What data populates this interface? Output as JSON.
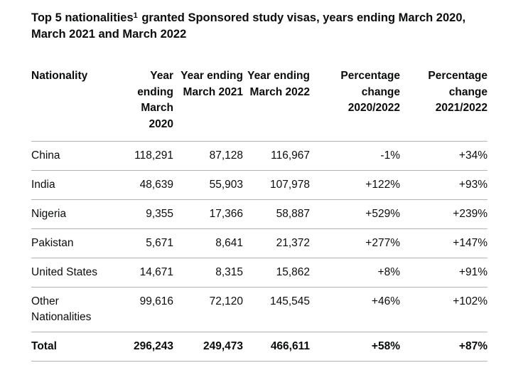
{
  "caption": {
    "before_sup": "Top 5 nationalities",
    "sup": "1",
    "after_sup": " granted Sponsored study visas, years ending March 2020, March 2021 and March 2022"
  },
  "table": {
    "headers": [
      "Nationality",
      "Year ending March 2020",
      "Year ending March 2021",
      "Year ending March 2022",
      "Percentage change 2020/2022",
      "Percentage change 2021/2022"
    ],
    "rows": [
      [
        "China",
        "118,291",
        "87,128",
        "116,967",
        "-1%",
        "+34%"
      ],
      [
        "India",
        "48,639",
        "55,903",
        "107,978",
        "+122%",
        "+93%"
      ],
      [
        "Nigeria",
        "9,355",
        "17,366",
        "58,887",
        "+529%",
        "+239%"
      ],
      [
        "Pakistan",
        "5,671",
        "8,641",
        "21,372",
        "+277%",
        "+147%"
      ],
      [
        "United States",
        "14,671",
        "8,315",
        "15,862",
        "+8%",
        "+91%"
      ],
      [
        "Other Nationalities",
        "99,616",
        "72,120",
        "145,545",
        "+46%",
        "+102%"
      ]
    ],
    "total": [
      "Total",
      "296,243",
      "249,473",
      "466,611",
      "+58%",
      "+87%"
    ]
  }
}
